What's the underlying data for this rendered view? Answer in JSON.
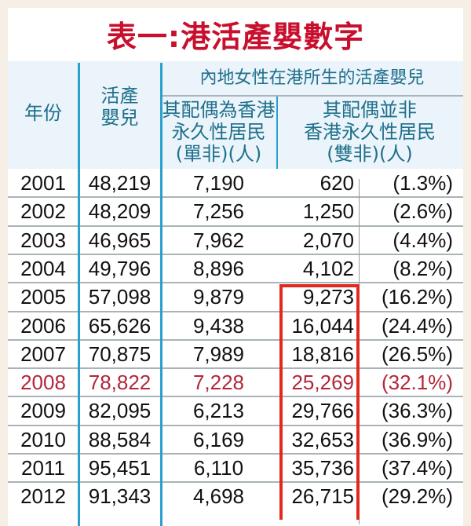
{
  "title": "表一:港活產嬰數字",
  "header": {
    "year": "年份",
    "live_births": [
      "活產",
      "嬰兒"
    ],
    "group": "內地女性在港所生的活產嬰兒",
    "single": [
      "其配偶為香港",
      "永久性居民",
      "(單非)(人)"
    ],
    "double": [
      "其配偶並非",
      "香港永久性居民",
      "(雙非)(人)"
    ]
  },
  "highlight_color": "#b3263a",
  "box_color": "#e02a1f",
  "rows": [
    {
      "year": "2001",
      "births": "48,219",
      "single": "7,190",
      "double": "620",
      "pct": "(1.3%)"
    },
    {
      "year": "2002",
      "births": "48,209",
      "single": "7,256",
      "double": "1,250",
      "pct": "(2.6%)"
    },
    {
      "year": "2003",
      "births": "46,965",
      "single": "7,962",
      "double": "2,070",
      "pct": "(4.4%)"
    },
    {
      "year": "2004",
      "births": "49,796",
      "single": "8,896",
      "double": "4,102",
      "pct": "(8.2%)"
    },
    {
      "year": "2005",
      "births": "57,098",
      "single": "9,879",
      "double": "9,273",
      "pct": "(16.2%)"
    },
    {
      "year": "2006",
      "births": "65,626",
      "single": "9,438",
      "double": "16,044",
      "pct": "(24.4%)"
    },
    {
      "year": "2007",
      "births": "70,875",
      "single": "7,989",
      "double": "18,816",
      "pct": "(26.5%)"
    },
    {
      "year": "2008",
      "births": "78,822",
      "single": "7,228",
      "double": "25,269",
      "pct": "(32.1%)"
    },
    {
      "year": "2009",
      "births": "82,095",
      "single": "6,213",
      "double": "29,766",
      "pct": "(36.3%)"
    },
    {
      "year": "2010",
      "births": "88,584",
      "single": "6,169",
      "double": "32,653",
      "pct": "(36.9%)"
    },
    {
      "year": "2011",
      "births": "95,451",
      "single": "6,110",
      "double": "35,736",
      "pct": "(37.4%)"
    },
    {
      "year": "2012",
      "births": "91,343",
      "single": "4,698",
      "double": "26,715",
      "pct": "(29.2%)"
    }
  ]
}
